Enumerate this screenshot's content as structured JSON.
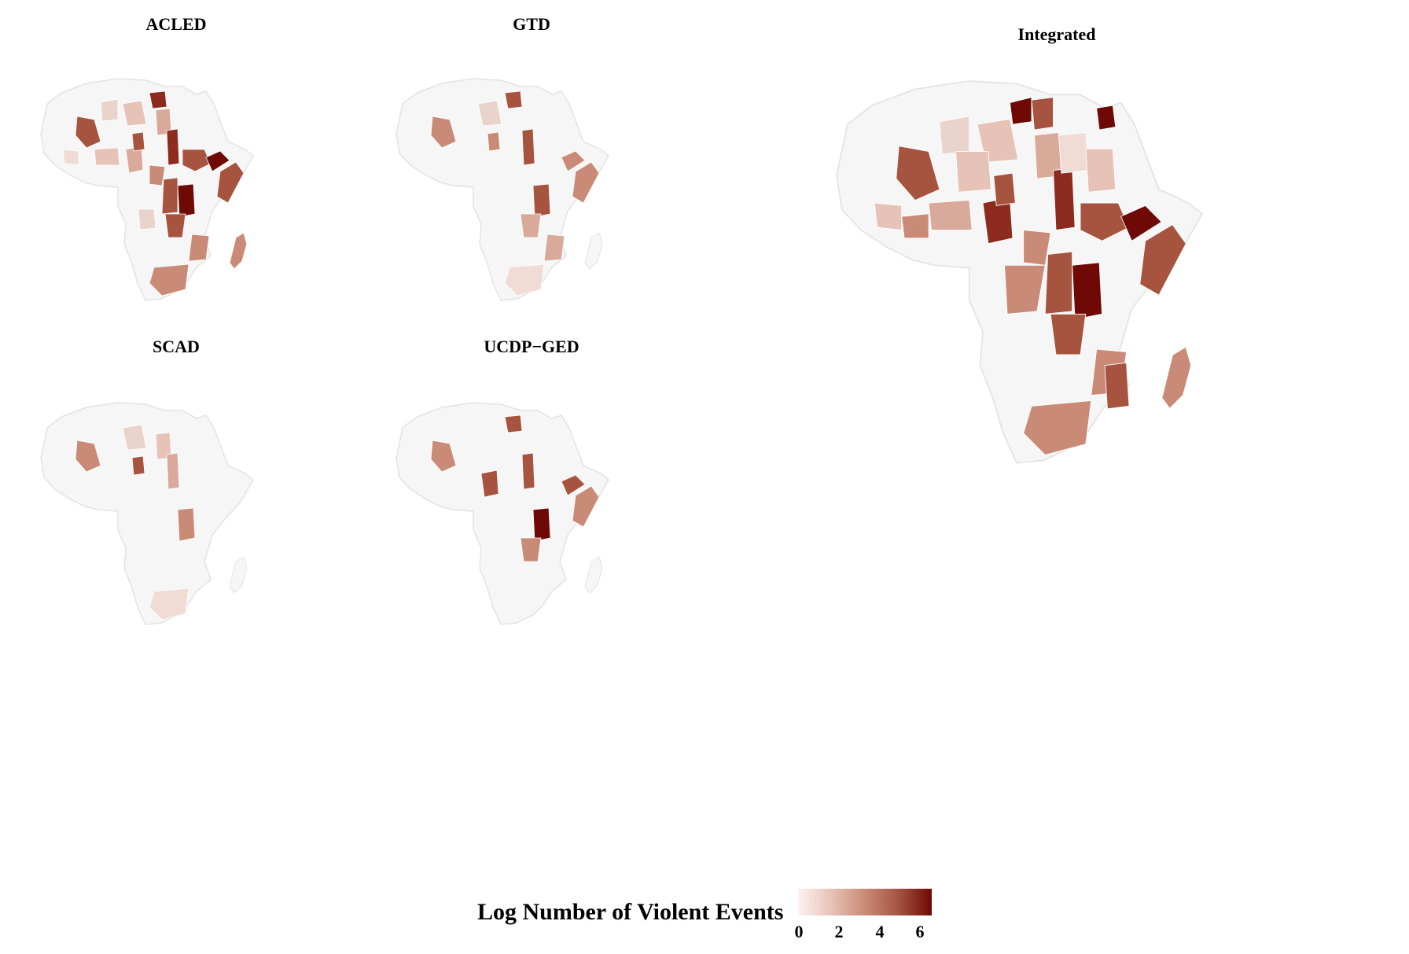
{
  "panels": {
    "acled": "ACLED",
    "gtd": "GTD",
    "scad": "SCAD",
    "ucdp": "UCDP−GED",
    "integrated": "Integrated"
  },
  "legend": {
    "title": "Log Number of Violent Events",
    "ticks": [
      "0",
      "2",
      "4",
      "6"
    ],
    "range": [
      0,
      6.6
    ],
    "colors": [
      "#fdf3f0",
      "#e7c2b6",
      "#c98b77",
      "#a6543f",
      "#6e0905"
    ]
  },
  "colors": {
    "no_data": "#f6f6f6",
    "border": "#ffffff",
    "outline": "#e3e3e3"
  }
}
